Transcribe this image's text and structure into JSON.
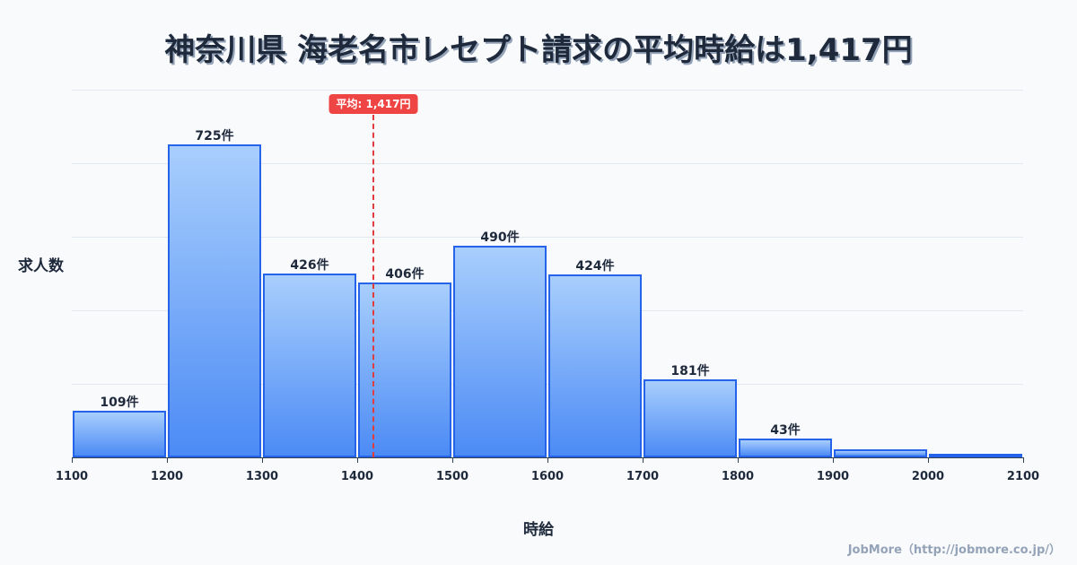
{
  "title": "神奈川県 海老名市レセプト請求の平均時給は1,417円",
  "credit": "JobMore（http://jobmore.co.jp/）",
  "colors": {
    "bar_top": "#a8cefc",
    "bar_bottom": "#4c8bf5",
    "bar_border": "#2563eb",
    "avg_line": "#e03e3e",
    "text": "#1e293b",
    "background": "#f8fafc"
  },
  "chart_data": {
    "type": "bar",
    "title": "神奈川県 海老名市レセプト請求の平均時給は1,417円",
    "xlabel": "時給",
    "ylabel": "求人数",
    "bins": [
      {
        "from": 1100,
        "to": 1200,
        "value": 109,
        "label": "109件"
      },
      {
        "from": 1200,
        "to": 1300,
        "value": 725,
        "label": "725件"
      },
      {
        "from": 1300,
        "to": 1400,
        "value": 426,
        "label": "426件"
      },
      {
        "from": 1400,
        "to": 1500,
        "value": 406,
        "label": "406件"
      },
      {
        "from": 1500,
        "to": 1600,
        "value": 490,
        "label": "490件"
      },
      {
        "from": 1600,
        "to": 1700,
        "value": 424,
        "label": "424件"
      },
      {
        "from": 1700,
        "to": 1800,
        "value": 181,
        "label": "181件"
      },
      {
        "from": 1800,
        "to": 1900,
        "value": 43,
        "label": "43件"
      },
      {
        "from": 1900,
        "to": 2000,
        "value": 19,
        "label": ""
      },
      {
        "from": 2000,
        "to": 2100,
        "value": 8,
        "label": ""
      }
    ],
    "x_ticks": [
      "1100",
      "1200",
      "1300",
      "1400",
      "1500",
      "1600",
      "1700",
      "1800",
      "1900",
      "2000",
      "2100"
    ],
    "xlim": [
      1100,
      2100
    ],
    "ylim": [
      0,
      850
    ],
    "grid": true,
    "average": {
      "value": 1417,
      "label": "平均: 1,417円"
    }
  }
}
